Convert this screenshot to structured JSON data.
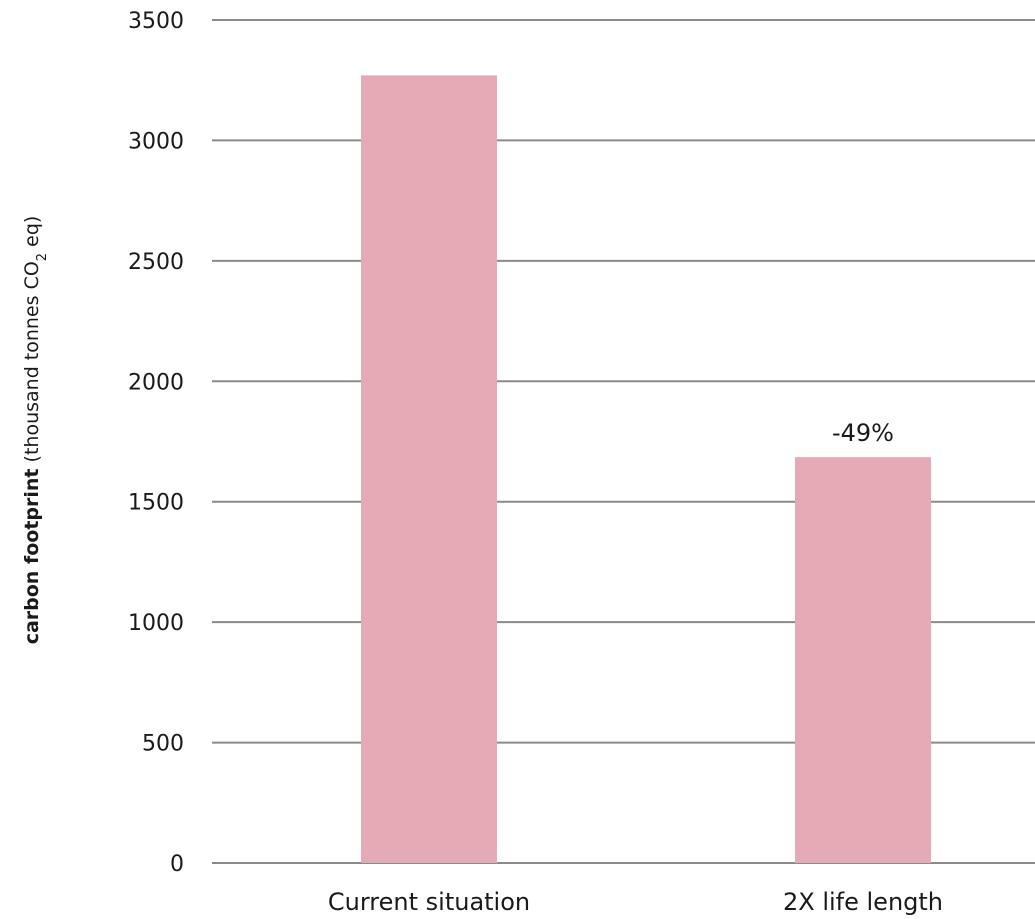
{
  "chart_data": {
    "type": "bar",
    "categories": [
      "Current situation",
      "2X life length"
    ],
    "values": [
      3270,
      1685
    ],
    "data_labels": [
      "",
      "-49%"
    ],
    "ylabel": {
      "bold": "carbon footprint",
      "rest_before_sub": "(thousand tonnes CO",
      "subscript": "2",
      "rest_after_sub": " eq)"
    },
    "ylim": [
      0,
      3500
    ],
    "yticks": [
      0,
      500,
      1000,
      1500,
      2000,
      2500,
      3000,
      3500
    ],
    "grid": true,
    "bar_color": "#e5aab5",
    "grid_color": "#8a8a8a",
    "legend": "none"
  }
}
